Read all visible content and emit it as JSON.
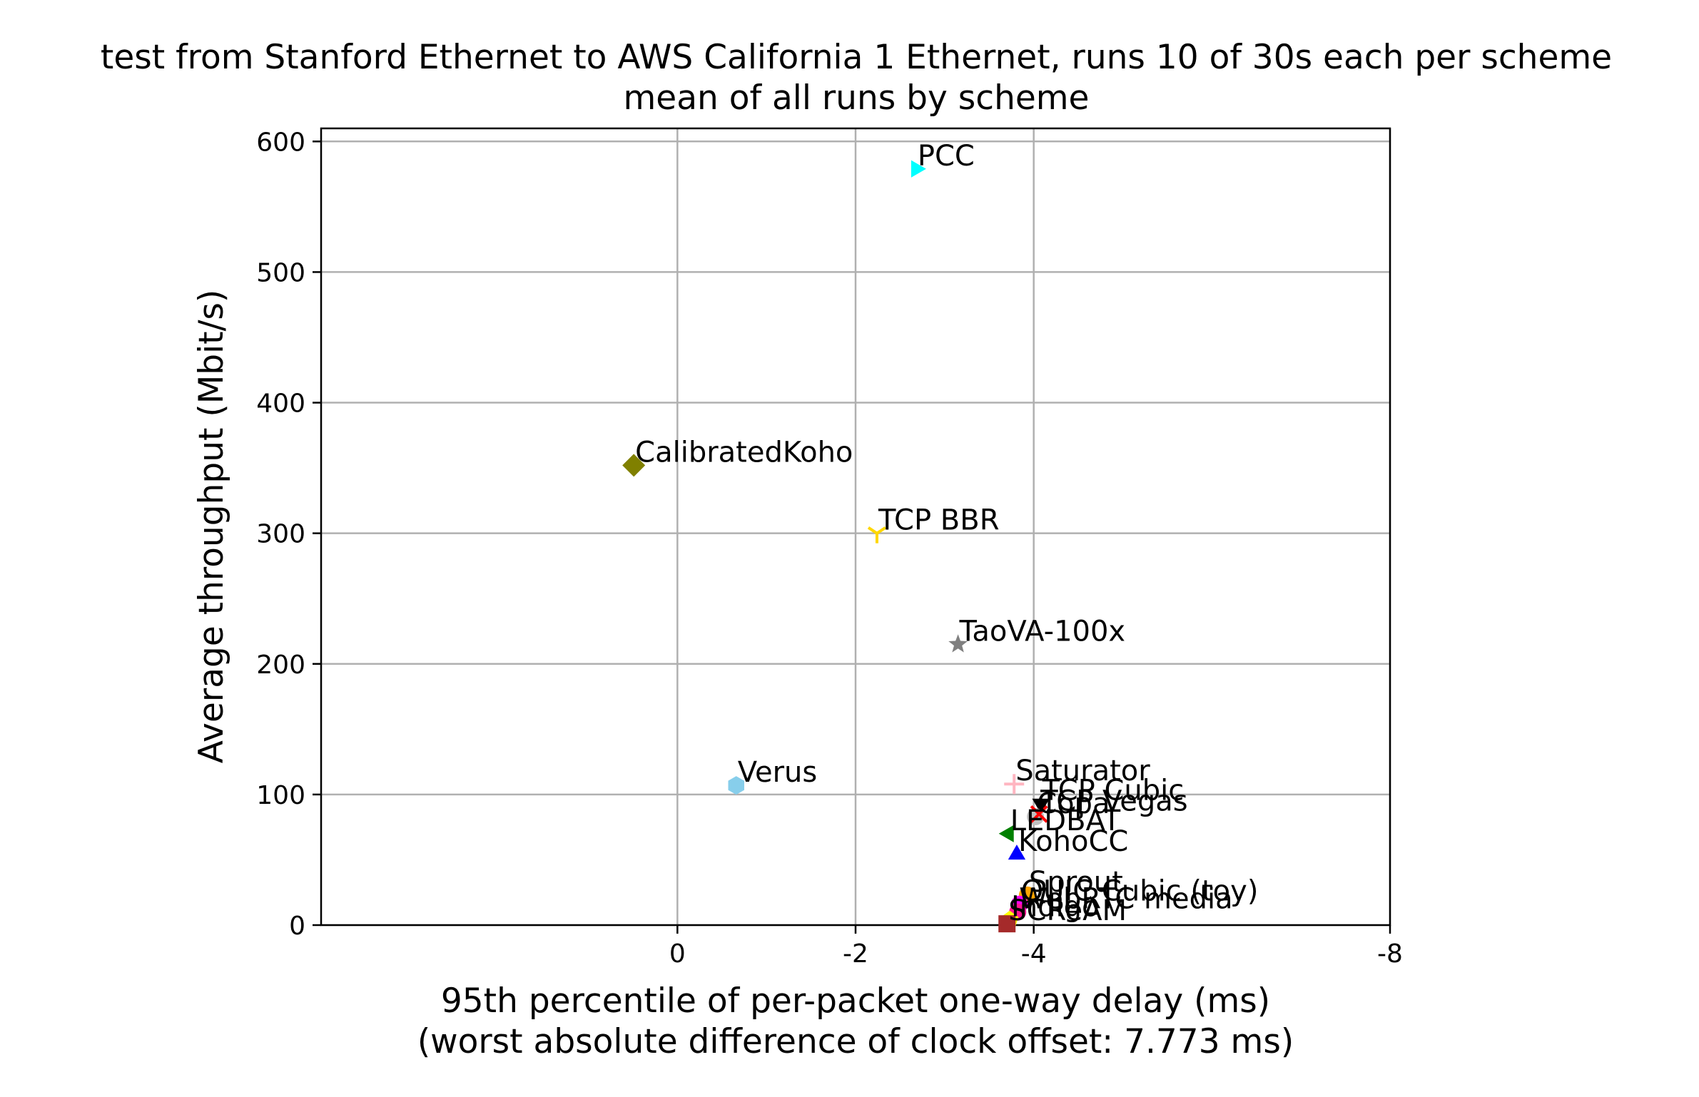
{
  "chart_data": {
    "type": "scatter",
    "title": "test from Stanford Ethernet to AWS California 1 Ethernet, runs 10 of 30s each per scheme",
    "subtitle": "mean of all runs by scheme",
    "xlabel": "95th percentile of per-packet one-way delay (ms)",
    "xlabel_sub": "(worst absolute difference of clock offset: 7.773 ms)",
    "ylabel": "Average throughput (Mbit/s)",
    "xlim": [
      4,
      -8
    ],
    "ylim": [
      0,
      610
    ],
    "x_inverted": true,
    "grid": true,
    "x_ticks": [
      {
        "value": 0,
        "label": "0"
      },
      {
        "value": -2,
        "label": "-2"
      },
      {
        "value": -4,
        "label": "-4"
      },
      {
        "value": -8,
        "label": "-8"
      }
    ],
    "y_ticks": [
      {
        "value": 0,
        "label": "0"
      },
      {
        "value": 100,
        "label": "100"
      },
      {
        "value": 200,
        "label": "200"
      },
      {
        "value": 300,
        "label": "300"
      },
      {
        "value": 400,
        "label": "400"
      },
      {
        "value": 500,
        "label": "500"
      },
      {
        "value": 600,
        "label": "600"
      }
    ],
    "points": [
      {
        "name": "PCC",
        "x": -2.68,
        "y": 579,
        "color": "#00ffff",
        "marker": "triangle-right"
      },
      {
        "name": "CalibratedKoho",
        "x": 0.49,
        "y": 352,
        "color": "#808000",
        "marker": "diamond"
      },
      {
        "name": "TCP BBR",
        "x": -2.24,
        "y": 300,
        "color": "#ffd700",
        "marker": "tri-down"
      },
      {
        "name": "TaoVA-100x",
        "x": -3.15,
        "y": 215,
        "color": "#808080",
        "marker": "star"
      },
      {
        "name": "Verus",
        "x": -0.66,
        "y": 107,
        "color": "#87ceeb",
        "marker": "hexagon"
      },
      {
        "name": "Saturator",
        "x": -3.78,
        "y": 108,
        "color": "#ffb6c1",
        "marker": "plus"
      },
      {
        "name": "TCP Cubic",
        "x": -4.08,
        "y": 93,
        "color": "#000000",
        "marker": "triangle-down"
      },
      {
        "name": "Copa",
        "x": -4.02,
        "y": 83,
        "color": "#c0c0c0",
        "marker": "circle"
      },
      {
        "name": "TCP Vegas",
        "x": -4.06,
        "y": 85,
        "color": "#ff0000",
        "marker": "x"
      },
      {
        "name": "LEDBAT",
        "x": -3.72,
        "y": 70,
        "color": "#008000",
        "marker": "triangle-left"
      },
      {
        "name": "KohoCC",
        "x": -3.81,
        "y": 54,
        "color": "#0000ff",
        "marker": "triangle-up"
      },
      {
        "name": "Sprout",
        "x": -3.93,
        "y": 23,
        "color": "#ffa500",
        "marker": "circle"
      },
      {
        "name": "QUIC Cubic (toy)",
        "x": -3.84,
        "y": 16,
        "color": "#ff00ff",
        "marker": "circle"
      },
      {
        "name": "WebRTC media",
        "x": -3.82,
        "y": 10,
        "color": "#ff1493",
        "marker": "circle"
      },
      {
        "name": "Indigo",
        "x": -3.73,
        "y": 4,
        "color": "#ffff00",
        "marker": "pentagon"
      },
      {
        "name": "SCReAM",
        "x": -3.7,
        "y": 1,
        "color": "#a52a2a",
        "marker": "square"
      }
    ]
  }
}
